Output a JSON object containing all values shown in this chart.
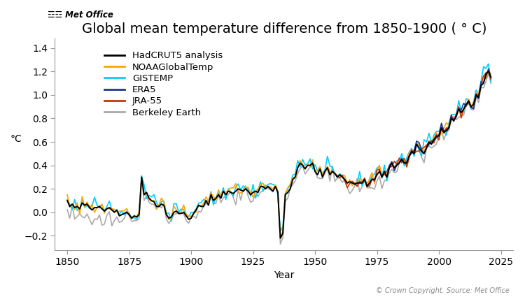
{
  "title": "Global mean temperature difference from 1850-1900 ( ° C)",
  "xlabel": "Year",
  "ylabel": "°C",
  "xlim": [
    1845,
    2030
  ],
  "ylim": [
    -0.32,
    1.48
  ],
  "yticks": [
    -0.2,
    0.0,
    0.2,
    0.4,
    0.6,
    0.8,
    1.0,
    1.2,
    1.4
  ],
  "xticks": [
    1850,
    1875,
    1900,
    1925,
    1950,
    1975,
    2000,
    2025
  ],
  "series": {
    "HadCRUT5 analysis": {
      "color": "#000000",
      "lw": 1.4,
      "zorder": 6
    },
    "NOAAGlobalTemp": {
      "color": "#FFA500",
      "lw": 1.2,
      "zorder": 4
    },
    "GISTEMP": {
      "color": "#00CFFF",
      "lw": 1.2,
      "zorder": 3
    },
    "ERA5": {
      "color": "#1F3A8F",
      "lw": 1.2,
      "zorder": 5
    },
    "JRA-55": {
      "color": "#CC3300",
      "lw": 1.2,
      "zorder": 4
    },
    "Berkeley Earth": {
      "color": "#AAAAAA",
      "lw": 1.2,
      "zorder": 2
    }
  },
  "copyright_text": "© Crown Copyright. Source: Met Office",
  "background_color": "#ffffff",
  "title_fontsize": 14,
  "label_fontsize": 10,
  "tick_fontsize": 10,
  "legend_fontsize": 9.5
}
